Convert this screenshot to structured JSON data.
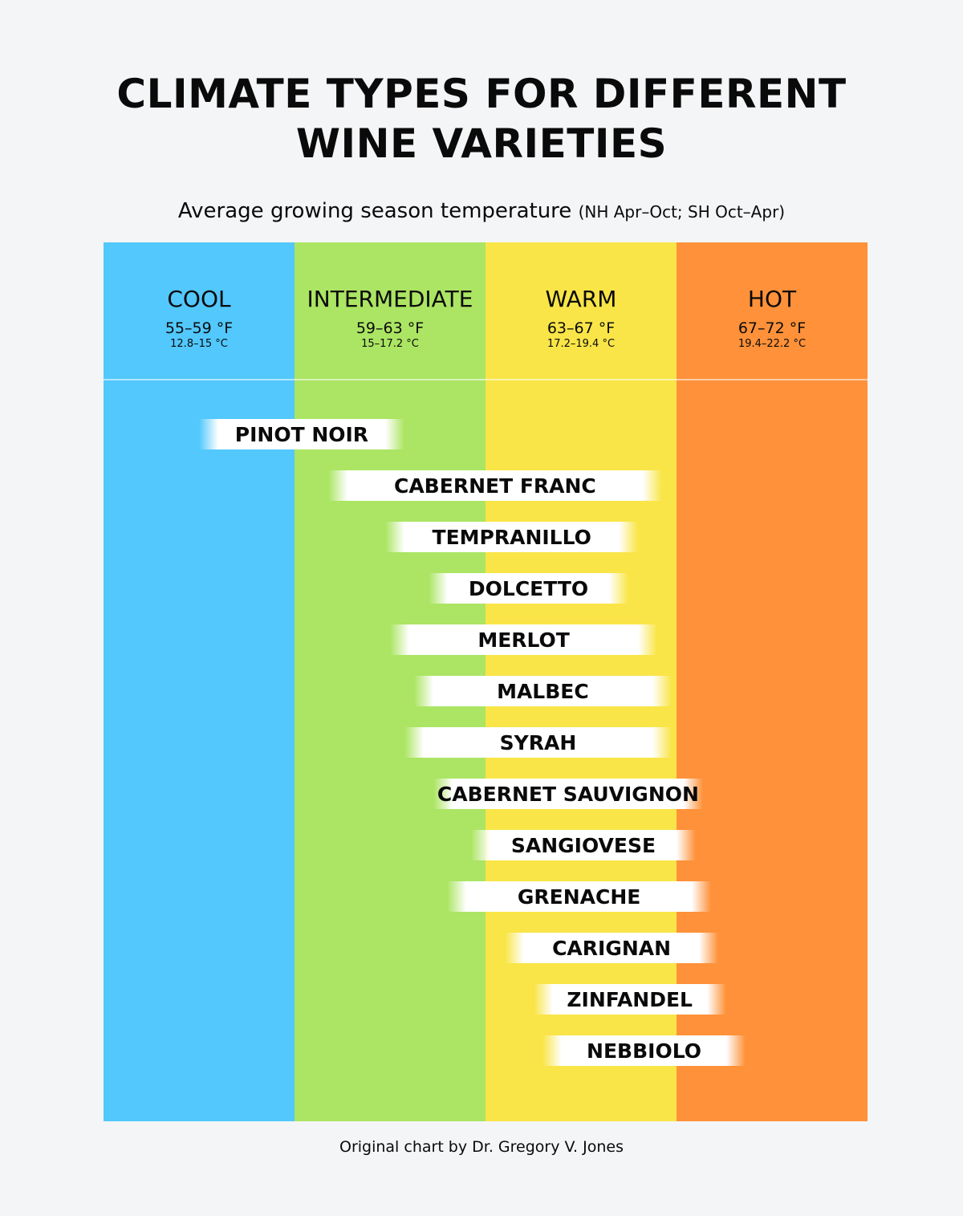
{
  "title_line1": "CLIMATE TYPES FOR DIFFERENT",
  "title_line2": "WINE VARIETIES",
  "subtitle": "Average growing season temperature",
  "subtitle_note": "(NH Apr–Oct; SH Oct–Apr)",
  "footer": "Original chart by Dr. Gregory V. Jones",
  "chart_data": {
    "type": "range-bar",
    "zones": [
      {
        "name": "COOL",
        "range_f": "55–59 °F",
        "range_c": "12.8–15 °C",
        "from": 55,
        "to": 59,
        "color": "#52c8fd"
      },
      {
        "name": "INTERMEDIATE",
        "range_f": "59–63 °F",
        "range_c": "15–17.2 °C",
        "from": 59,
        "to": 63,
        "color": "#abe563"
      },
      {
        "name": "WARM",
        "range_f": "63–67 °F",
        "range_c": "17.2–19.4 °C",
        "from": 63,
        "to": 67,
        "color": "#f9e547"
      },
      {
        "name": "HOT",
        "range_f": "67–72 °F",
        "range_c": "19.4–22.2 °C",
        "from": 67,
        "to": 72,
        "color": "#fe9139"
      }
    ],
    "unit": "°F",
    "series": [
      {
        "variety": "PINOT NOIR",
        "min": 57.0,
        "max": 61.3
      },
      {
        "variety": "CABERNET FRANC",
        "min": 59.7,
        "max": 66.7
      },
      {
        "variety": "TEMPRANILLO",
        "min": 60.9,
        "max": 66.2
      },
      {
        "variety": "DOLCETTO",
        "min": 61.8,
        "max": 66.0
      },
      {
        "variety": "MERLOT",
        "min": 61.0,
        "max": 66.6
      },
      {
        "variety": "MALBEC",
        "min": 61.5,
        "max": 66.9
      },
      {
        "variety": "SYRAH",
        "min": 61.3,
        "max": 66.9
      },
      {
        "variety": "CABERNET SAUVIGNON",
        "min": 61.9,
        "max": 67.7
      },
      {
        "variety": "SANGIOVESE",
        "min": 62.7,
        "max": 67.5
      },
      {
        "variety": "GRENACHE",
        "min": 62.2,
        "max": 67.9
      },
      {
        "variety": "CARIGNAN",
        "min": 63.4,
        "max": 68.1
      },
      {
        "variety": "ZINFANDEL",
        "min": 64.0,
        "max": 68.3
      },
      {
        "variety": "NEBBIOLO",
        "min": 64.2,
        "max": 68.8
      }
    ]
  }
}
